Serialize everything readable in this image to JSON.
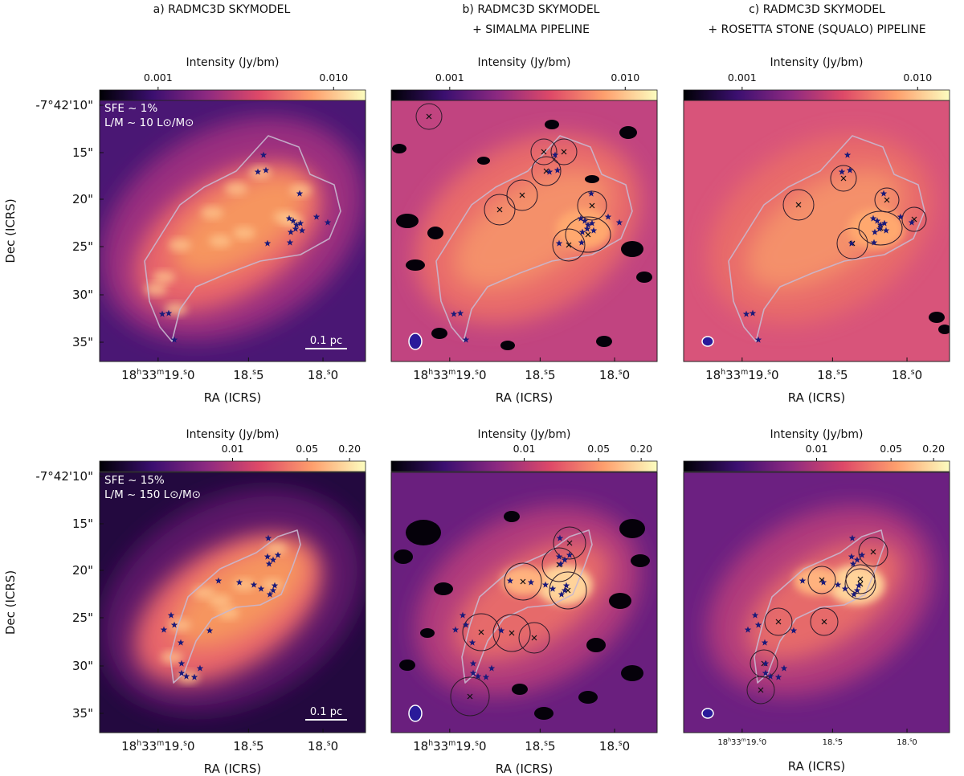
{
  "figure": {
    "columns": [
      {
        "line1": "a) RADMC3D SKYMODEL",
        "line2": ""
      },
      {
        "line1": "b) RADMC3D SKYMODEL",
        "line2": "+ SIMALMA PIPELINE"
      },
      {
        "line1": "c) RADMC3D SKYMODEL",
        "line2": "+ ROSETTA STONE (SQUALO) PIPELINE"
      }
    ],
    "rows": [
      {
        "colorbar_label": "Intensity (Jy/bm)",
        "colorbar_ticks": [
          {
            "label": "0.001",
            "frac": 0.22
          },
          {
            "label": "0.010",
            "frac": 0.88
          }
        ],
        "sfe_label": "SFE ~ 1%",
        "lm_label": "L/M ~ 10 L⊙/M⊙"
      },
      {
        "colorbar_label": "Intensity (Jy/bm)",
        "colorbar_ticks": [
          {
            "label": "0.01",
            "frac": 0.5
          },
          {
            "label": "0.05",
            "frac": 0.78
          },
          {
            "label": "0.20",
            "frac": 0.94
          }
        ],
        "sfe_label": "SFE ~ 15%",
        "lm_label": "L/M ~ 150 L⊙/M⊙"
      }
    ],
    "dec_ticks": [
      "-7°42'10\"",
      "15\"",
      "20\"",
      "25\"",
      "30\"",
      "35\""
    ],
    "dec_axis_label": "Dec (ICRS)",
    "ra_axis_label": "RA (ICRS)",
    "ra_ticks": [
      {
        "h": "18",
        "m": "33",
        "s": "19.0",
        "frac": 0.22
      },
      {
        "s": "18.5",
        "frac": 0.56
      },
      {
        "s": "18.0",
        "frac": 0.84
      }
    ],
    "scalebar_label": "0.1 pc",
    "colormap": [
      "#000004",
      "#3b0f70",
      "#8c2981",
      "#de4968",
      "#fe9f6d",
      "#fcfdbf"
    ]
  }
}
